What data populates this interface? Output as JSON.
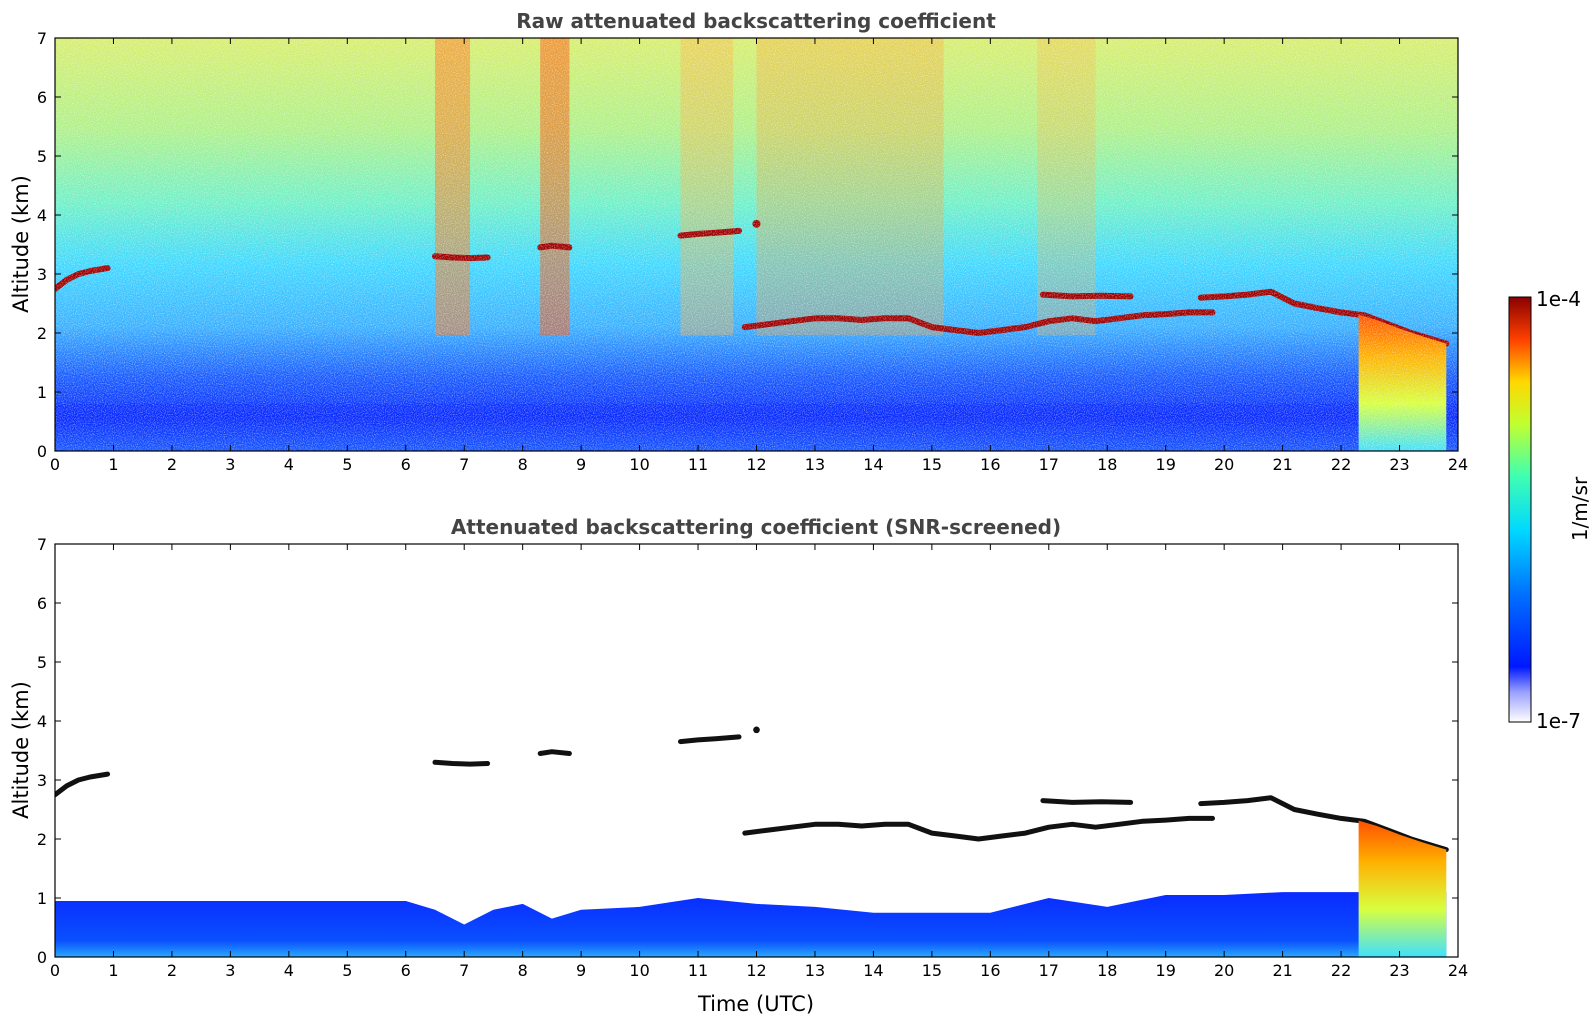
{
  "chart_data": [
    {
      "type": "heatmap",
      "title": "Raw attenuated backscattering coefficient",
      "xlabel": "",
      "ylabel": "Altitude (km)",
      "xlim": [
        0,
        24
      ],
      "ylim": [
        0,
        7
      ],
      "xticks": [
        "0",
        "1",
        "2",
        "3",
        "4",
        "5",
        "6",
        "7",
        "8",
        "9",
        "10",
        "11",
        "12",
        "13",
        "14",
        "15",
        "16",
        "17",
        "18",
        "19",
        "20",
        "21",
        "22",
        "23",
        "24"
      ],
      "yticks": [
        "0",
        "1",
        "2",
        "3",
        "4",
        "5",
        "6",
        "7"
      ],
      "colorbar": {
        "label": "1/m/sr",
        "min_label": "1e-7",
        "max_label": "1e-4",
        "scale": "log"
      },
      "cloud_layers": [
        {
          "x": [
            0,
            0.2,
            0.4,
            0.6,
            0.9
          ],
          "y": [
            2.75,
            2.9,
            3.0,
            3.05,
            3.1
          ]
        },
        {
          "x": [
            6.5,
            6.8,
            7.1,
            7.4
          ],
          "y": [
            3.3,
            3.28,
            3.27,
            3.28
          ]
        },
        {
          "x": [
            8.3,
            8.5,
            8.8
          ],
          "y": [
            3.45,
            3.48,
            3.45
          ]
        },
        {
          "x": [
            10.7,
            11.0,
            11.3,
            11.7
          ],
          "y": [
            3.65,
            3.68,
            3.7,
            3.73
          ]
        },
        {
          "x": [
            12.0
          ],
          "y": [
            3.85
          ]
        },
        {
          "x": [
            11.8,
            12.2,
            12.6,
            13.0,
            13.4,
            13.8,
            14.2,
            14.6,
            15.0,
            15.4,
            15.8,
            16.2,
            16.6,
            17.0,
            17.4,
            17.8,
            18.2,
            18.6,
            19.0,
            19.4,
            19.8
          ],
          "y": [
            2.1,
            2.15,
            2.2,
            2.25,
            2.25,
            2.22,
            2.25,
            2.25,
            2.1,
            2.05,
            2.0,
            2.05,
            2.1,
            2.2,
            2.25,
            2.2,
            2.25,
            2.3,
            2.32,
            2.35,
            2.35
          ]
        },
        {
          "x": [
            16.9,
            17.4,
            17.9,
            18.4
          ],
          "y": [
            2.65,
            2.62,
            2.63,
            2.62
          ]
        },
        {
          "x": [
            19.6,
            20.0,
            20.4,
            20.8,
            21.2,
            21.6,
            22.0,
            22.4,
            22.8,
            23.2,
            23.6,
            23.8
          ],
          "y": [
            2.6,
            2.62,
            2.65,
            2.7,
            2.5,
            2.42,
            2.35,
            2.3,
            2.15,
            2.0,
            1.88,
            1.82
          ]
        }
      ]
    },
    {
      "type": "heatmap",
      "title": "Attenuated backscattering coefficient (SNR-screened)",
      "xlabel": "Time (UTC)",
      "ylabel": "Altitude (km)",
      "xlim": [
        0,
        24
      ],
      "ylim": [
        0,
        7
      ],
      "xticks": [
        "0",
        "1",
        "2",
        "3",
        "4",
        "5",
        "6",
        "7",
        "8",
        "9",
        "10",
        "11",
        "12",
        "13",
        "14",
        "15",
        "16",
        "17",
        "18",
        "19",
        "20",
        "21",
        "22",
        "23",
        "24"
      ],
      "yticks": [
        "0",
        "1",
        "2",
        "3",
        "4",
        "5",
        "6",
        "7"
      ],
      "boundary_layer_top": {
        "x": [
          0,
          2,
          4,
          6,
          6.5,
          7,
          7.5,
          8,
          8.5,
          9,
          10,
          11,
          12,
          13,
          14,
          15,
          16,
          17,
          18,
          19,
          20,
          21,
          22
        ],
        "y": [
          0.95,
          0.95,
          0.95,
          0.95,
          0.8,
          0.55,
          0.8,
          0.9,
          0.65,
          0.8,
          0.85,
          1.0,
          0.9,
          0.85,
          0.75,
          0.75,
          0.75,
          1.0,
          0.85,
          1.05,
          1.05,
          1.1,
          1.1
        ]
      }
    }
  ]
}
